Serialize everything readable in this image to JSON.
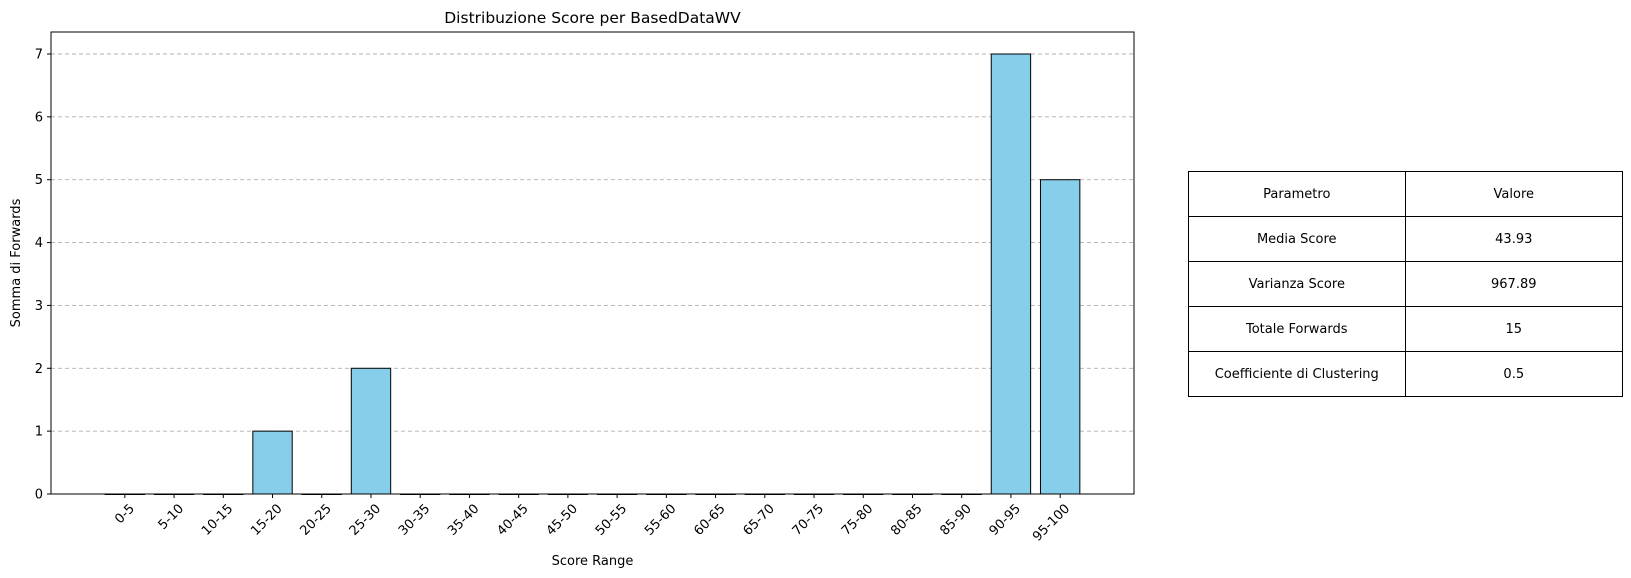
{
  "chart_data": {
    "type": "bar",
    "title": "Distribuzione Score per BasedDataWV",
    "xlabel": "Score Range",
    "ylabel": "Somma di Forwards",
    "categories": [
      "0-5",
      "5-10",
      "10-15",
      "15-20",
      "20-25",
      "25-30",
      "30-35",
      "35-40",
      "40-45",
      "45-50",
      "50-55",
      "55-60",
      "60-65",
      "65-70",
      "70-75",
      "75-80",
      "80-85",
      "85-90",
      "90-95",
      "95-100"
    ],
    "values": [
      0,
      0,
      0,
      1,
      0,
      2,
      0,
      0,
      0,
      0,
      0,
      0,
      0,
      0,
      0,
      0,
      0,
      0,
      7,
      5
    ],
    "ylim": [
      0,
      7.35
    ],
    "yticks": [
      0,
      1,
      2,
      3,
      4,
      5,
      6,
      7
    ],
    "grid": "y-dashed",
    "bar_color": "#87ceeb",
    "edge_color": "#000000",
    "grid_color": "#b0b0b0"
  },
  "table": {
    "header": [
      "Parametro",
      "Valore"
    ],
    "rows": [
      [
        "Media Score",
        "43.93"
      ],
      [
        "Varianza Score",
        "967.89"
      ],
      [
        "Totale Forwards",
        "15"
      ],
      [
        "Coefficiente di Clustering",
        "0.5"
      ]
    ]
  }
}
